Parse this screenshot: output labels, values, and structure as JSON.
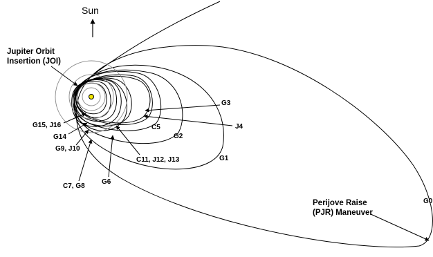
{
  "direction": {
    "label": "Sun"
  },
  "annotations": {
    "joi": [
      "Jupiter Orbit",
      "Insertion (JOI)"
    ],
    "pjr": [
      "Perijove Raise",
      "(PJR) Maneuver"
    ]
  },
  "orbit_labels": {
    "g0": "G0",
    "g1": "G1",
    "g2": "G2",
    "g3": "G3",
    "j4": "J4",
    "c5": "C5",
    "g6": "G6",
    "c7_g8": "C7, G8",
    "g9_j10": "G9, J10",
    "c11_j12_j13": "C11, J12, J13",
    "g14": "G14",
    "g15_j16": "G15, J16"
  },
  "colors": {
    "planet": "#f2e600",
    "ring": "#8a8a8a",
    "line": "#000000"
  }
}
